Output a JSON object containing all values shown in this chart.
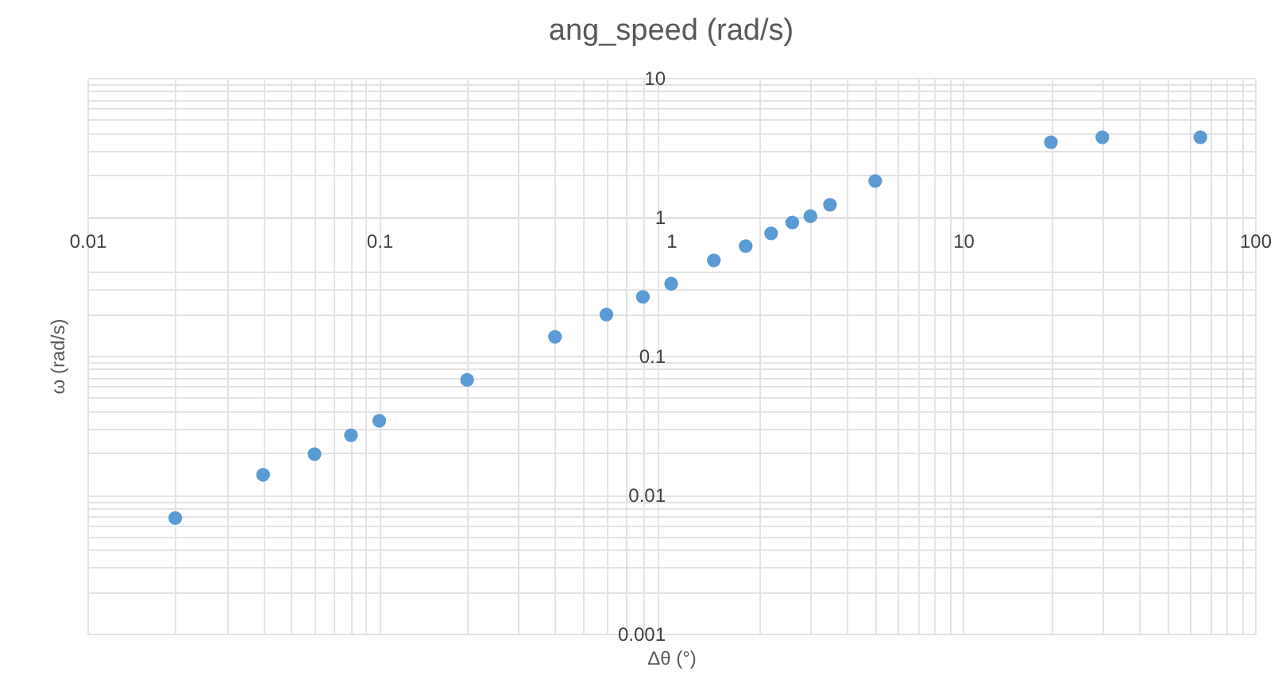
{
  "chart_data": {
    "type": "scatter",
    "title": "ang_speed (rad/s)",
    "xlabel": "Δθ (°)",
    "ylabel": "ω (rad/s)",
    "x": [
      0.02,
      0.04,
      0.06,
      0.08,
      0.1,
      0.2,
      0.4,
      0.6,
      0.8,
      1,
      1.4,
      1.8,
      2.2,
      2.6,
      3,
      3.5,
      5,
      20,
      30,
      65
    ],
    "series": [
      {
        "color": "#5b9bd5",
        "values": [
          0.0068,
          0.0139,
          0.0196,
          0.0268,
          0.034,
          0.067,
          0.137,
          0.198,
          0.265,
          0.33,
          0.485,
          0.615,
          0.76,
          0.91,
          1.01,
          1.22,
          1.81,
          3.44,
          3.73,
          3.73
        ]
      }
    ],
    "xlim": [
      0.01,
      100
    ],
    "ylim": [
      0.001,
      10
    ],
    "xticks": [
      0.01,
      0.1,
      1,
      10,
      100
    ],
    "yticks": [
      0.001,
      0.01,
      0.1,
      1,
      10
    ],
    "log": "xy",
    "grid": true,
    "marker": "circle"
  }
}
